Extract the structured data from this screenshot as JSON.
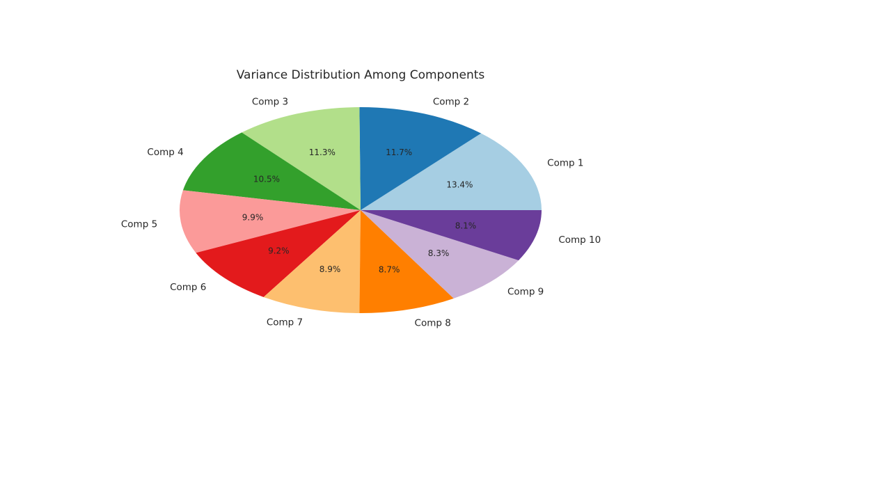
{
  "chart_data": {
    "type": "pie",
    "title": "Variance Distribution Among Components",
    "categories": [
      "Comp 1",
      "Comp 2",
      "Comp 3",
      "Comp 4",
      "Comp 5",
      "Comp 6",
      "Comp 7",
      "Comp 8",
      "Comp 9",
      "Comp 10"
    ],
    "values": [
      13.4,
      11.7,
      11.3,
      10.5,
      9.9,
      9.2,
      8.9,
      8.7,
      8.3,
      8.1
    ],
    "value_labels": [
      "13.4%",
      "11.7%",
      "11.3%",
      "10.5%",
      "9.9%",
      "9.2%",
      "8.9%",
      "8.7%",
      "8.3%",
      "8.1%"
    ],
    "colors": [
      "#a6cee3",
      "#1f78b4",
      "#b2df8a",
      "#33a02c",
      "#fb9a99",
      "#e31a1c",
      "#fdbf6f",
      "#ff7f00",
      "#cab2d6",
      "#6a3d9a"
    ],
    "start_angle_deg": 0,
    "direction": "counterclockwise"
  }
}
